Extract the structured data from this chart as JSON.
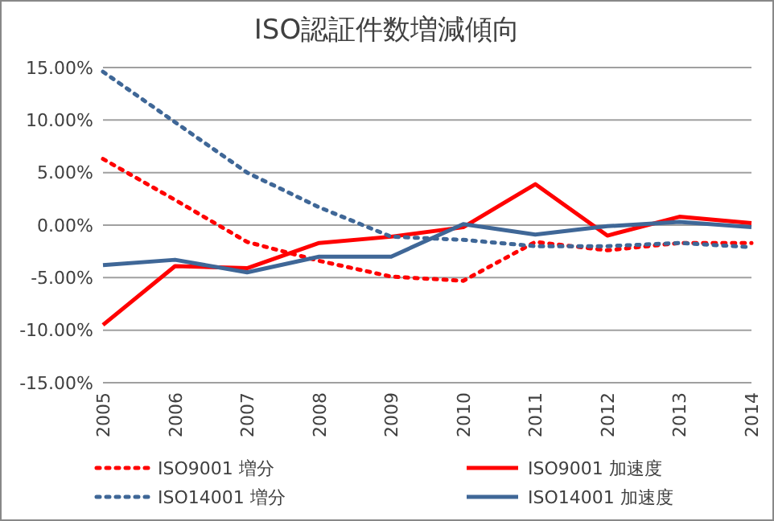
{
  "chart_data": {
    "type": "line",
    "title": "ISO認証件数増減傾向",
    "categories": [
      "2005",
      "2006",
      "2007",
      "2008",
      "2009",
      "2010",
      "2011",
      "2012",
      "2013",
      "2014"
    ],
    "ylim": [
      -15,
      15
    ],
    "yticks": [
      {
        "value": -15,
        "label": "-15.00%"
      },
      {
        "value": -10,
        "label": "-10.00%"
      },
      {
        "value": -5,
        "label": "-5.00%"
      },
      {
        "value": 0,
        "label": "0.00%"
      },
      {
        "value": 5,
        "label": "5.00%"
      },
      {
        "value": 10,
        "label": "10.00%"
      },
      {
        "value": 15,
        "label": "15.00%"
      }
    ],
    "grid": "y",
    "legend": "bottom",
    "marker": "none",
    "series": [
      {
        "name": "ISO9001 増分",
        "color": "#ff0000",
        "line_style": "dotted",
        "values": [
          6.3,
          2.4,
          -1.6,
          -3.4,
          -4.9,
          -5.3,
          -1.6,
          -2.4,
          -1.7,
          -1.7
        ]
      },
      {
        "name": "ISO9001 加速度",
        "color": "#ff0000",
        "line_style": "solid",
        "values": [
          -9.5,
          -3.9,
          -4.1,
          -1.7,
          -1.1,
          -0.2,
          3.9,
          -1.0,
          0.8,
          0.2
        ]
      },
      {
        "name": "ISO14001 増分",
        "color": "#3f6797",
        "line_style": "dotted",
        "values": [
          14.6,
          9.8,
          5.0,
          1.7,
          -1.1,
          -1.4,
          -2.0,
          -2.0,
          -1.7,
          -2.1
        ]
      },
      {
        "name": "ISO14001 加速度",
        "color": "#3f6797",
        "line_style": "solid",
        "values": [
          -3.8,
          -3.3,
          -4.5,
          -3.0,
          -3.0,
          0.1,
          -0.9,
          -0.1,
          0.3,
          -0.2
        ]
      }
    ]
  }
}
